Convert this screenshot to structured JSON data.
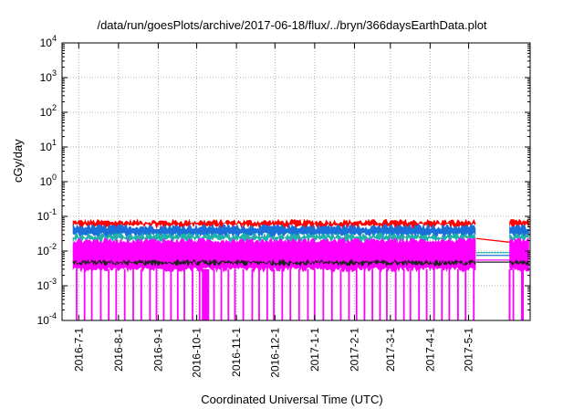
{
  "chart_data": {
    "type": "area",
    "title": "/data/run/goesPlots/archive/2017-06-18/flux/../bryn/366daysEarthData.plot",
    "xlabel": "Coordinated Universal Time (UTC)",
    "ylabel": "cGy/day",
    "x_range": [
      "2016-06-18",
      "2017-06-18"
    ],
    "y_range": [
      0.0001,
      10000
    ],
    "y_scale": "log",
    "grid": true,
    "legend": "none",
    "x_ticks": [
      "2016-7-1",
      "2016-8-1",
      "2016-9-1",
      "2016-10-1",
      "2016-11-1",
      "2016-12-1",
      "2017-1-1",
      "2017-2-1",
      "2017-3-1",
      "2017-4-1",
      "2017-5-1"
    ],
    "y_ticks": [
      {
        "base": "10",
        "exp": "-4"
      },
      {
        "base": "10",
        "exp": "-3"
      },
      {
        "base": "10",
        "exp": "-2"
      },
      {
        "base": "10",
        "exp": "-1"
      },
      {
        "base": "10",
        "exp": "0"
      },
      {
        "base": "10",
        "exp": "1"
      },
      {
        "base": "10",
        "exp": "2"
      },
      {
        "base": "10",
        "exp": "3"
      },
      {
        "base": "10",
        "exp": "4"
      }
    ],
    "data_gap": {
      "start": "2017-05-07",
      "end": "2017-06-02"
    },
    "series": [
      {
        "color": "#ff0000",
        "typical_top": 0.07,
        "typical_bottom": 0.055
      },
      {
        "color": "#1a6fd9",
        "typical_top": 0.05,
        "typical_bottom": 0.03
      },
      {
        "color": "#20b2aa",
        "typical_top": 0.028,
        "typical_bottom": 0.022
      },
      {
        "color": "#ff00ff",
        "typical_top": 0.02,
        "typical_bottom": 0.003,
        "dropout_min": 0.0001
      },
      {
        "color": "#222222",
        "typical_top": 0.0048,
        "typical_bottom": 0.0045
      }
    ],
    "gap_segments": [
      {
        "color": "#ff0000",
        "y_start": 0.023,
        "y_end": 0.018
      },
      {
        "color": "#20b2aa",
        "y_start": 0.009,
        "y_end": 0.009
      },
      {
        "color": "#1a6fd9",
        "y_start": 0.0075,
        "y_end": 0.0075
      },
      {
        "color": "#ff00ff",
        "y_start": 0.0055,
        "y_end": 0.0055
      },
      {
        "color": "#222222",
        "y_start": 0.0048,
        "y_end": 0.0048
      }
    ]
  }
}
